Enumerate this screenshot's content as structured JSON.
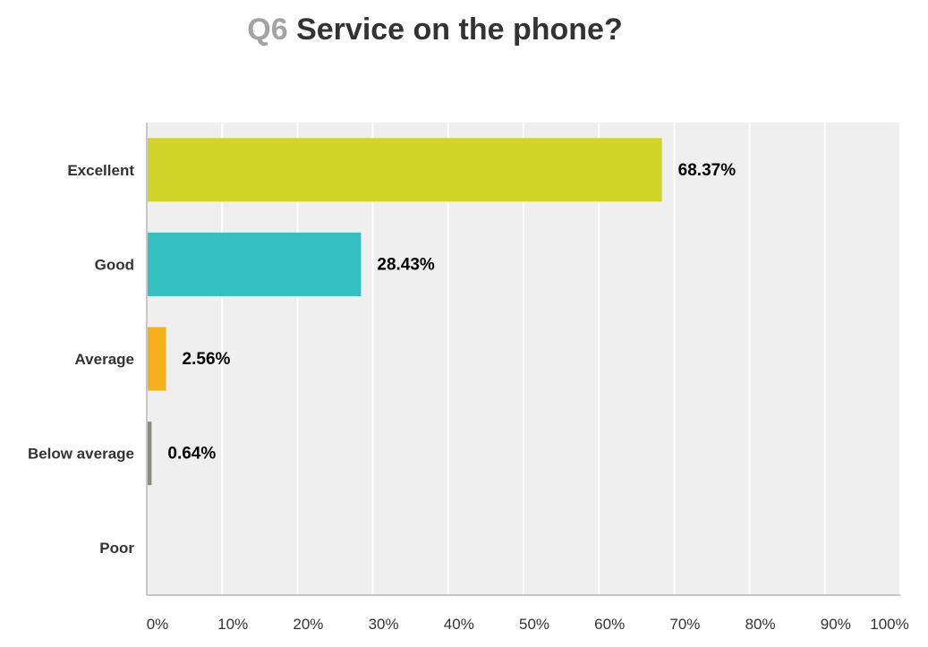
{
  "chart_data": {
    "type": "bar",
    "orientation": "horizontal",
    "question_number": "Q6",
    "title": "Service on the phone?",
    "categories": [
      "Excellent",
      "Good",
      "Average",
      "Below average",
      "Poor"
    ],
    "values": [
      68.37,
      28.43,
      2.56,
      0.64,
      0
    ],
    "value_labels": [
      "68.37%",
      "28.43%",
      "2.56%",
      "0.64%",
      ""
    ],
    "colors": [
      "#d1d52a",
      "#34bfc0",
      "#f6b01e",
      "#8c8c7e",
      "#b0b0b0"
    ],
    "xlim": [
      0,
      100
    ],
    "x_ticks": [
      "0%",
      "10%",
      "20%",
      "30%",
      "40%",
      "50%",
      "60%",
      "70%",
      "80%",
      "90%",
      "100%"
    ],
    "grid": true,
    "background": "#efefef"
  }
}
